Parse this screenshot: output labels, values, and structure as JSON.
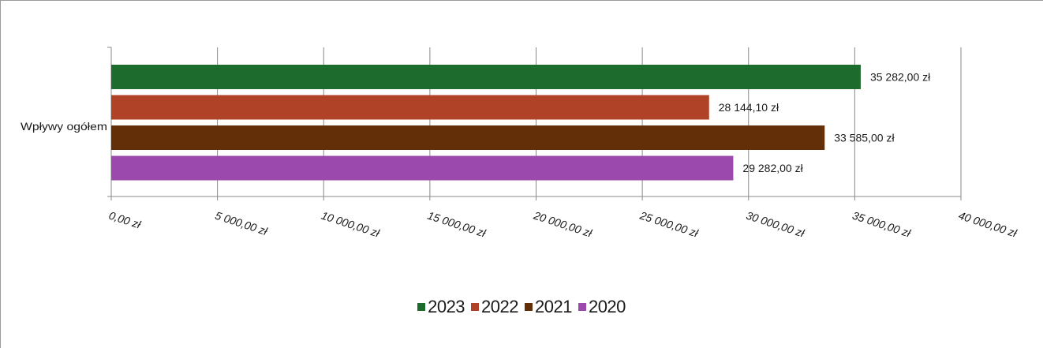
{
  "chart_data": {
    "type": "bar",
    "orientation": "horizontal",
    "categories": [
      "Wpływy ogółem"
    ],
    "series": [
      {
        "name": "2023",
        "values": [
          35282.0
        ],
        "label": "35 282,00 zł",
        "color": "#1e6b2e"
      },
      {
        "name": "2022",
        "values": [
          28144.1
        ],
        "label": "28 144,10 zł",
        "color": "#b04327"
      },
      {
        "name": "2021",
        "values": [
          33585.0
        ],
        "label": "33 585,00 zł",
        "color": "#622f09"
      },
      {
        "name": "2020",
        "values": [
          29282.0
        ],
        "label": "29 282,00 zł",
        "color": "#9c49ad"
      }
    ],
    "xlim": [
      0,
      40000
    ],
    "xticks": [
      0,
      5000,
      10000,
      15000,
      20000,
      25000,
      30000,
      35000,
      40000
    ],
    "xtick_labels": [
      "0,00 zł",
      "5 000,00 zł",
      "10 000,00 zł",
      "15 000,00 zł",
      "20 000,00 zł",
      "25 000,00 zł",
      "30 000,00 zł",
      "35 000,00 zł",
      "40 000,00 zł"
    ],
    "grid": "vertical",
    "legend": "bottom"
  }
}
